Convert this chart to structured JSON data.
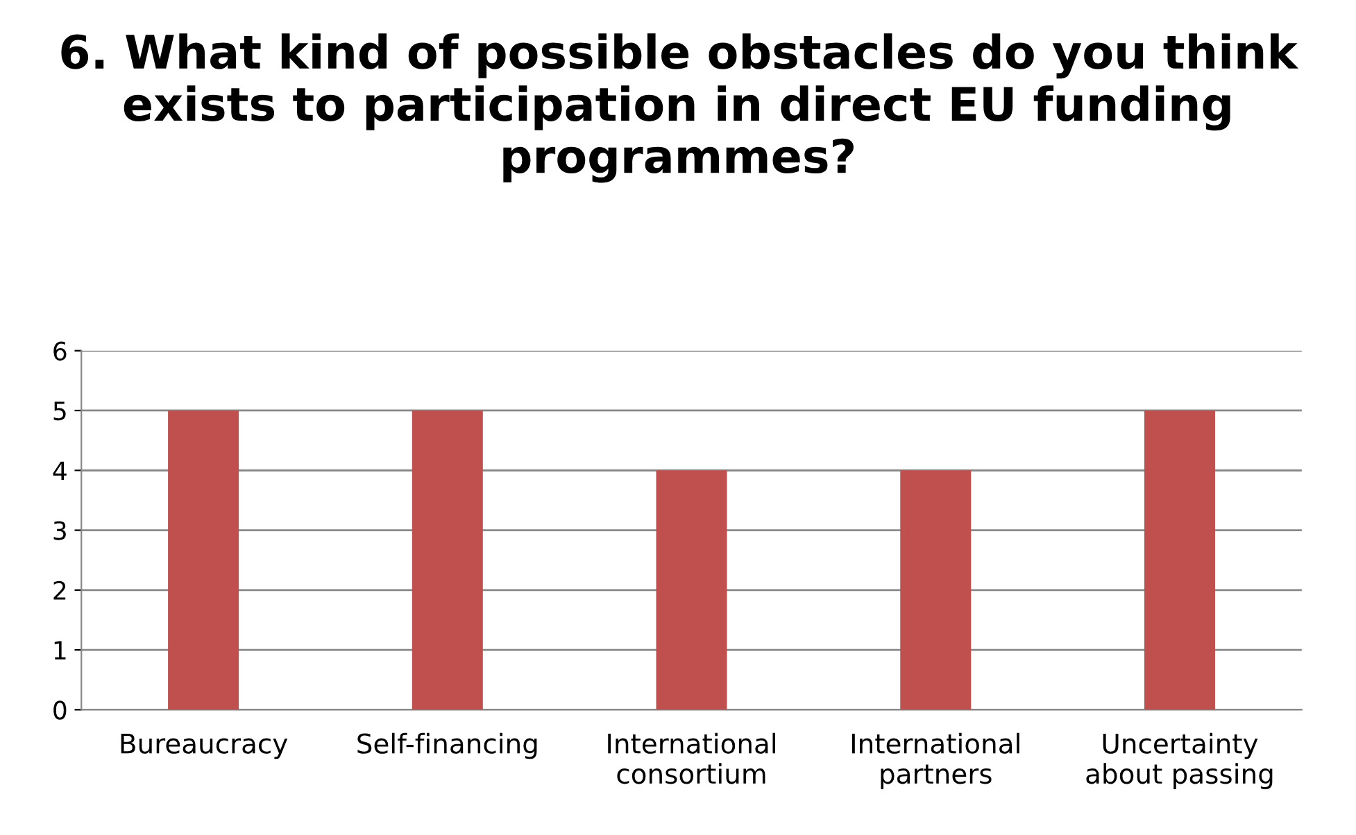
{
  "chart_data": {
    "type": "bar",
    "title": "6. What kind of possible obstacles do you think exists to participation in direct EU funding programmes?",
    "categories": [
      "Bureaucracy",
      "Self-financing",
      "International\nconsortium",
      "International\npartners",
      "Uncertainty\nabout passing"
    ],
    "values": [
      5,
      5,
      4,
      4,
      5
    ],
    "color": "#c0504d",
    "ylim": [
      0,
      6
    ],
    "yticks": [
      0,
      1,
      2,
      3,
      4,
      5,
      6
    ],
    "grid": "y"
  }
}
